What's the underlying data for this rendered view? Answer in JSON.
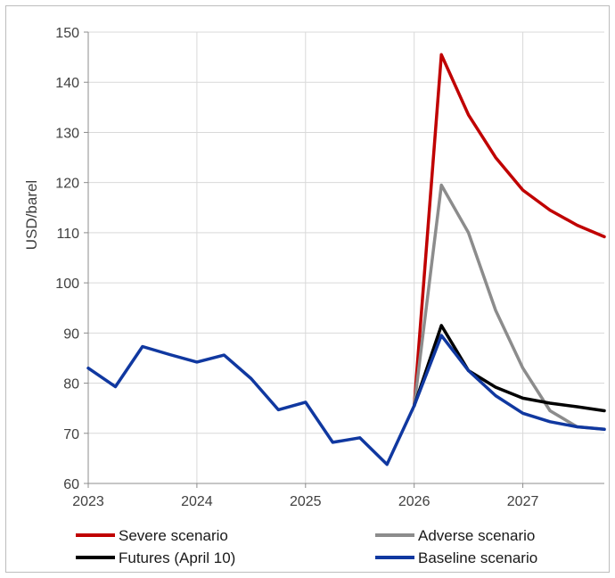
{
  "chart_data": {
    "type": "line",
    "title": "",
    "xlabel": "",
    "ylabel": "USD/barel",
    "ylim": [
      60,
      150
    ],
    "yticks": [
      60,
      70,
      80,
      90,
      100,
      110,
      120,
      130,
      140,
      150
    ],
    "xlim": [
      2023.0,
      2027.75
    ],
    "xticks": [
      "2023",
      "2024",
      "2025",
      "2026",
      "2027"
    ],
    "grid": true,
    "legend_position": "bottom",
    "series": [
      {
        "name": "Severe scenario",
        "color": "#c00000",
        "points": [
          [
            2026.0,
            75.5
          ],
          [
            2026.25,
            145.5
          ],
          [
            2026.5,
            133.5
          ],
          [
            2026.75,
            125.0
          ],
          [
            2027.0,
            118.5
          ],
          [
            2027.25,
            114.5
          ],
          [
            2027.5,
            111.5
          ],
          [
            2027.75,
            109.2
          ]
        ]
      },
      {
        "name": "Adverse scenario",
        "color": "#8c8c8c",
        "points": [
          [
            2026.0,
            75.5
          ],
          [
            2026.25,
            119.5
          ],
          [
            2026.5,
            110.0
          ],
          [
            2026.75,
            94.5
          ],
          [
            2027.0,
            83.0
          ],
          [
            2027.25,
            74.5
          ],
          [
            2027.5,
            71.3
          ],
          [
            2027.75,
            70.8
          ]
        ]
      },
      {
        "name": "Futures (April 10)",
        "color": "#000000",
        "points": [
          [
            2026.0,
            75.5
          ],
          [
            2026.25,
            91.5
          ],
          [
            2026.5,
            82.5
          ],
          [
            2026.75,
            79.2
          ],
          [
            2027.0,
            77.0
          ],
          [
            2027.25,
            76.0
          ],
          [
            2027.5,
            75.3
          ],
          [
            2027.75,
            74.5
          ]
        ]
      },
      {
        "name": "Baseline scenario",
        "color": "#1038a0",
        "points": [
          [
            2023.0,
            83.0
          ],
          [
            2023.25,
            79.3
          ],
          [
            2023.5,
            87.3
          ],
          [
            2023.75,
            85.7
          ],
          [
            2024.0,
            84.2
          ],
          [
            2024.25,
            85.6
          ],
          [
            2024.5,
            80.9
          ],
          [
            2024.75,
            74.7
          ],
          [
            2025.0,
            76.2
          ],
          [
            2025.25,
            68.2
          ],
          [
            2025.5,
            69.1
          ],
          [
            2025.75,
            63.8
          ],
          [
            2026.0,
            75.5
          ],
          [
            2026.25,
            89.5
          ],
          [
            2026.5,
            82.5
          ],
          [
            2026.75,
            77.5
          ],
          [
            2027.0,
            74.0
          ],
          [
            2027.25,
            72.3
          ],
          [
            2027.5,
            71.3
          ],
          [
            2027.75,
            70.8
          ]
        ]
      }
    ]
  }
}
